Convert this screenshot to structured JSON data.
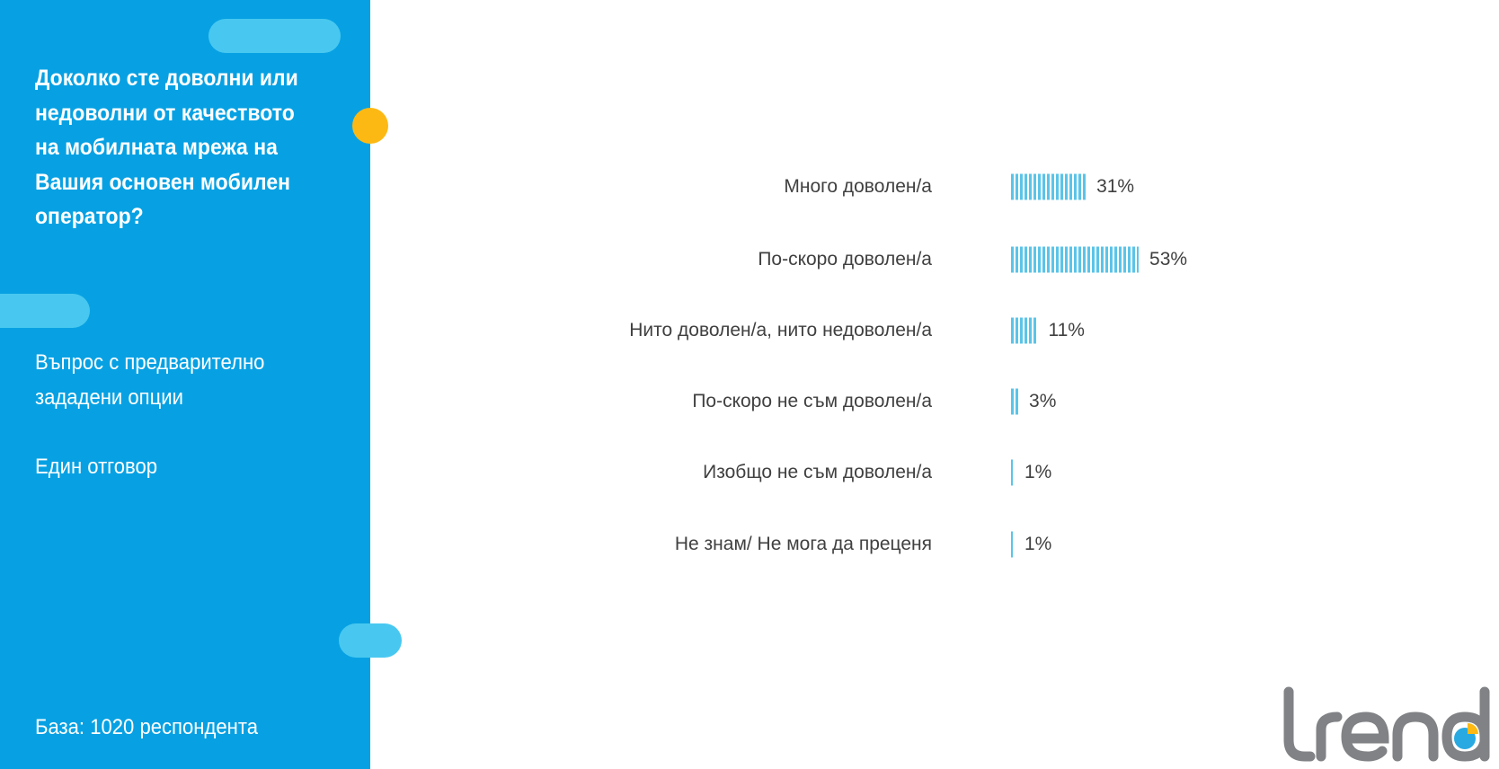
{
  "sidebar": {
    "question": "Доколко сте доволни или недоволни от качеството на мобилната мрежа на Вашия основен мобилен оператор?",
    "question_type": "Въпрос с предварително зададени опции",
    "answer_type": "Един отговор",
    "base": "База:  1020 респондента"
  },
  "colors": {
    "sidebar": "#07a1e3",
    "bar": "#5bc4e8",
    "accent": "#fdb913"
  },
  "logo": {
    "text": "trend"
  },
  "chart_data": {
    "type": "bar",
    "orientation": "horizontal",
    "categories": [
      "Много доволен/а",
      "По-скоро доволен/а",
      "Нито доволен/а, нито недоволен/а",
      "По-скоро не съм доволен/а",
      "Изобщо не съм доволен/а",
      "Не знам/ Не мога да преценя"
    ],
    "values": [
      31,
      53,
      11,
      3,
      1,
      1
    ],
    "value_labels": [
      "31%",
      "53%",
      "11%",
      "3%",
      "1%",
      "1%"
    ],
    "unit": "%",
    "grid": false
  }
}
